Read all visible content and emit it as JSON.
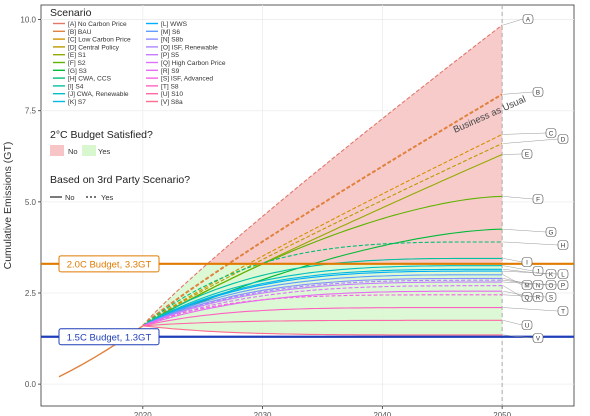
{
  "chart_data": {
    "type": "line",
    "ylabel": "Cumulative Emissions (GT)",
    "xlabel": "",
    "xlim": [
      2011.5,
      2056
    ],
    "ylim": [
      -0.6,
      10.4
    ],
    "x_ticks": [
      2020,
      2030,
      2040,
      2050
    ],
    "y_ticks": [
      "0.0",
      "2.5",
      "5.0",
      "7.5",
      "10.0"
    ],
    "y_tick_values": [
      0,
      2.5,
      5,
      7.5,
      10
    ],
    "history": {
      "x": [
        2013,
        2014,
        2015,
        2016,
        2017,
        2018,
        2019,
        2020
      ],
      "y": [
        0.2,
        0.37,
        0.55,
        0.74,
        0.94,
        1.15,
        1.37,
        1.6
      ]
    },
    "budgets": [
      {
        "label": "2.0C Budget, 3.3GT",
        "value": 3.3,
        "color": "#e07b00"
      },
      {
        "label": "1.5C Budget, 1.3GT",
        "value": 1.3,
        "color": "#1f3fb8"
      }
    ],
    "vertical_line": {
      "x": 2050,
      "style": "dashed"
    },
    "legend": {
      "title": "Scenario",
      "items": [
        {
          "label": "[A] No Carbon Price",
          "color": "#e2776c"
        },
        {
          "label": "[B] BAU",
          "color": "#e0823e"
        },
        {
          "label": "[C] Low Carbon Price",
          "color": "#d39200"
        },
        {
          "label": "[D] Central Policy",
          "color": "#b89b00"
        },
        {
          "label": "[E] S1",
          "color": "#93aa00"
        },
        {
          "label": "[F] S2",
          "color": "#5eb300"
        },
        {
          "label": "[G] S3",
          "color": "#00ba38"
        },
        {
          "label": "[H] CWA, CCS",
          "color": "#00bf74"
        },
        {
          "label": "[I] S4",
          "color": "#00c19f"
        },
        {
          "label": "[J] CWA, Renewable",
          "color": "#00bfc4"
        },
        {
          "label": "[K] S7",
          "color": "#00b9e3"
        },
        {
          "label": "[L] WWS",
          "color": "#00adfa"
        },
        {
          "label": "[M] S6",
          "color": "#619cff"
        },
        {
          "label": "[N] S8b",
          "color": "#8a8cff"
        },
        {
          "label": "[O] ISF, Renewable",
          "color": "#ae87ff"
        },
        {
          "label": "[P] S5",
          "color": "#c77cff"
        },
        {
          "label": "[Q] High Carbon Price",
          "color": "#db72fb"
        },
        {
          "label": "[R] S9",
          "color": "#e76bf3"
        },
        {
          "label": "[S] ISF, Advanced",
          "color": "#f564e3"
        },
        {
          "label": "[T] S8",
          "color": "#ff61c3"
        },
        {
          "label": "[U] S10",
          "color": "#ff67a4"
        },
        {
          "label": "[V] S8a",
          "color": "#ff6c91"
        }
      ],
      "budget_title": "2°C Budget Satisfied?",
      "budget_items": [
        {
          "label": "No",
          "color": "#f7c5c5"
        },
        {
          "label": "Yes",
          "color": "#d9f7cf"
        }
      ],
      "party_title": "Based on 3rd Party Scenario?",
      "party_items": [
        {
          "label": "No",
          "style": "solid"
        },
        {
          "label": "Yes",
          "style": "dashed"
        }
      ]
    },
    "series": [
      {
        "key": "A",
        "end": 9.85,
        "color": "#e2776c",
        "dashed": true
      },
      {
        "key": "B",
        "end": 7.95,
        "color": "#e0823e",
        "dashed": true
      },
      {
        "key": "C",
        "end": 6.85,
        "color": "#d39200",
        "dashed": true
      },
      {
        "key": "D",
        "end": 6.6,
        "color": "#b89b00",
        "dashed": true
      },
      {
        "key": "E",
        "end": 6.3,
        "color": "#93aa00",
        "dashed": false
      },
      {
        "key": "F",
        "end": 5.15,
        "color": "#5eb300",
        "dashed": false
      },
      {
        "key": "G",
        "end": 4.25,
        "color": "#00ba38",
        "dashed": false
      },
      {
        "key": "H",
        "end": 3.9,
        "color": "#00bf74",
        "dashed": true
      },
      {
        "key": "I",
        "end": 3.45,
        "color": "#00c19f",
        "dashed": false
      },
      {
        "key": "J",
        "end": 3.25,
        "color": "#00bfc4",
        "dashed": false
      },
      {
        "key": "K",
        "end": 3.15,
        "color": "#00b9e3",
        "dashed": false
      },
      {
        "key": "L",
        "end": 3.1,
        "color": "#00adfa",
        "dashed": false
      },
      {
        "key": "M",
        "end": 3.0,
        "color": "#619cff",
        "dashed": false
      },
      {
        "key": "N",
        "end": 2.9,
        "color": "#8a8cff",
        "dashed": false
      },
      {
        "key": "O",
        "end": 2.85,
        "color": "#ae87ff",
        "dashed": true
      },
      {
        "key": "P",
        "end": 2.8,
        "color": "#c77cff",
        "dashed": false
      },
      {
        "key": "Q",
        "end": 2.7,
        "color": "#db72fb",
        "dashed": true
      },
      {
        "key": "R",
        "end": 2.55,
        "color": "#e76bf3",
        "dashed": false
      },
      {
        "key": "S",
        "end": 2.45,
        "color": "#f564e3",
        "dashed": true
      },
      {
        "key": "T",
        "end": 2.1,
        "color": "#ff61c3",
        "dashed": false
      },
      {
        "key": "U",
        "end": 1.75,
        "color": "#ff67a4",
        "dashed": false
      },
      {
        "key": "V",
        "end": 1.35,
        "color": "#ff6c91",
        "dashed": false
      }
    ],
    "annotations": [
      {
        "text": "Business as Usual"
      }
    ]
  }
}
